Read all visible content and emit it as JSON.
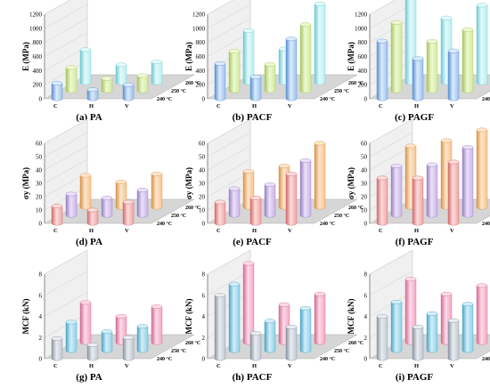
{
  "figure": {
    "depth_labels": [
      "240 °C",
      "250 °C",
      "260 °C"
    ],
    "categories": [
      "C",
      "H",
      "V"
    ]
  },
  "chart_data": [
    {
      "type": "bar",
      "panel": "(a) PA",
      "ylabel": "E (MPa)",
      "ylim": [
        0,
        1200
      ],
      "yticks": [
        0,
        200,
        400,
        600,
        800,
        1000,
        1200
      ],
      "metric": "E",
      "categories": [
        "C",
        "H",
        "V"
      ],
      "series": [
        {
          "name": "240 °C",
          "values": [
            220,
            130,
            200
          ]
        },
        {
          "name": "250 °C",
          "values": [
            330,
            175,
            215
          ]
        },
        {
          "name": "260 °C",
          "values": [
            470,
            255,
            295
          ]
        }
      ]
    },
    {
      "type": "bar",
      "panel": "(b) PACF",
      "ylabel": "E (MPa)",
      "ylim": [
        0,
        1200
      ],
      "yticks": [
        0,
        200,
        400,
        600,
        800,
        1000,
        1200
      ],
      "metric": "E",
      "categories": [
        "C",
        "H",
        "V"
      ],
      "series": [
        {
          "name": "240 °C",
          "values": [
            500,
            310,
            850
          ]
        },
        {
          "name": "250 °C",
          "values": [
            560,
            375,
            940
          ]
        },
        {
          "name": "260 °C",
          "values": [
            740,
            480,
            1120
          ]
        }
      ]
    },
    {
      "type": "bar",
      "panel": "(c) PAGF",
      "ylabel": "E (MPa)",
      "ylim": [
        0,
        1200
      ],
      "yticks": [
        0,
        200,
        400,
        600,
        800,
        1000,
        1200
      ],
      "metric": "E",
      "categories": [
        "C",
        "H",
        "V"
      ],
      "series": [
        {
          "name": "240 °C",
          "values": [
            820,
            570,
            680
          ]
        },
        {
          "name": "250 °C",
          "values": [
            970,
            700,
            870
          ]
        },
        {
          "name": "260 °C",
          "values": [
            1210,
            920,
            1100
          ]
        }
      ]
    },
    {
      "type": "bar",
      "panel": "(d) PA",
      "ylabel": "σy (MPa)",
      "ylim": [
        0,
        60
      ],
      "yticks": [
        0,
        10,
        20,
        30,
        40,
        50,
        60
      ],
      "metric": "sy",
      "categories": [
        "C",
        "H",
        "V"
      ],
      "series": [
        {
          "name": "240 °C",
          "values": [
            13,
            10,
            16
          ]
        },
        {
          "name": "250 °C",
          "values": [
            16,
            13,
            19
          ]
        },
        {
          "name": "260 °C",
          "values": [
            24,
            19,
            25
          ]
        }
      ]
    },
    {
      "type": "bar",
      "panel": "(e) PACF",
      "ylabel": "σy (MPa)",
      "ylim": [
        0,
        60
      ],
      "yticks": [
        0,
        10,
        20,
        30,
        40,
        50,
        60
      ],
      "metric": "sy",
      "categories": [
        "C",
        "H",
        "V"
      ],
      "series": [
        {
          "name": "240 °C",
          "values": [
            16,
            19,
            37
          ]
        },
        {
          "name": "250 °C",
          "values": [
            20,
            23,
            41
          ]
        },
        {
          "name": "260 °C",
          "values": [
            27,
            31,
            48
          ]
        }
      ]
    },
    {
      "type": "bar",
      "panel": "(f) PAGF",
      "ylabel": "σy (MPa)",
      "ylim": [
        0,
        60
      ],
      "yticks": [
        0,
        10,
        20,
        30,
        40,
        50,
        60
      ],
      "metric": "sy",
      "categories": [
        "C",
        "H",
        "V"
      ],
      "series": [
        {
          "name": "240 °C",
          "values": [
            34,
            34,
            46
          ]
        },
        {
          "name": "250 °C",
          "values": [
            37,
            38,
            51
          ]
        },
        {
          "name": "260 °C",
          "values": [
            46,
            50,
            58
          ]
        }
      ]
    },
    {
      "type": "bar",
      "panel": "(g) PA",
      "ylabel": "MCF (kN)",
      "ylim": [
        0,
        8
      ],
      "yticks": [
        0,
        2,
        4,
        6,
        8
      ],
      "metric": "MCF",
      "categories": [
        "C",
        "H",
        "V"
      ],
      "series": [
        {
          "name": "240 °C",
          "values": [
            1.9,
            1.3,
            2.0
          ]
        },
        {
          "name": "250 °C",
          "values": [
            2.7,
            1.8,
            2.3
          ]
        },
        {
          "name": "260 °C",
          "values": [
            3.8,
            2.5,
            3.4
          ]
        }
      ]
    },
    {
      "type": "bar",
      "panel": "(h) PACF",
      "ylabel": "MCF (kN)",
      "ylim": [
        0,
        8
      ],
      "yticks": [
        0,
        2,
        4,
        6,
        8
      ],
      "metric": "MCF",
      "categories": [
        "C",
        "H",
        "V"
      ],
      "series": [
        {
          "name": "240 °C",
          "values": [
            6.0,
            2.4,
            3.0
          ]
        },
        {
          "name": "250 °C",
          "values": [
            6.3,
            2.8,
            4.0
          ]
        },
        {
          "name": "260 °C",
          "values": [
            7.5,
            3.6,
            4.6
          ]
        }
      ]
    },
    {
      "type": "bar",
      "panel": "(i) PAGF",
      "ylabel": "MCF (kN)",
      "ylim": [
        0,
        8
      ],
      "yticks": [
        0,
        2,
        4,
        6,
        8
      ],
      "metric": "MCF",
      "categories": [
        "C",
        "H",
        "V"
      ],
      "series": [
        {
          "name": "240 °C",
          "values": [
            4.0,
            3.0,
            3.6
          ]
        },
        {
          "name": "250 °C",
          "values": [
            4.6,
            3.5,
            4.4
          ]
        },
        {
          "name": "260 °C",
          "values": [
            6.0,
            4.6,
            5.4
          ]
        }
      ]
    }
  ],
  "colors": {
    "E": {
      "body": "#9cc1ec",
      "light": "#dcebfb",
      "dark": "#5b8fd2"
    },
    "E_alt": {
      "body": "#d2ea9c",
      "light": "#eef8d4",
      "dark": "#a5c65d"
    },
    "E_alt2": {
      "body": "#b8eef0",
      "light": "#e4fafb",
      "dark": "#6fc9cf"
    },
    "sy": {
      "body": "#f0a4a4",
      "light": "#fbdcdc",
      "dark": "#d26a6a"
    },
    "sy_alt": {
      "body": "#c9b3e6",
      "light": "#ebe1f8",
      "dark": "#9a7fc4"
    },
    "sy_alt2": {
      "body": "#f6c48e",
      "light": "#fde6cc",
      "dark": "#d99349"
    },
    "MCF": {
      "body": "#c1c8d2",
      "light": "#e9edf2",
      "dark": "#8a939f"
    },
    "MCF_alt": {
      "body": "#8ed0e8",
      "light": "#d4eef8",
      "dark": "#4aa6c9"
    },
    "MCF_alt2": {
      "body": "#f3a6c3",
      "light": "#fcdbe7",
      "dark": "#d36a94"
    },
    "floor": "#d6d6d6",
    "wall": "#f0f0f0"
  }
}
